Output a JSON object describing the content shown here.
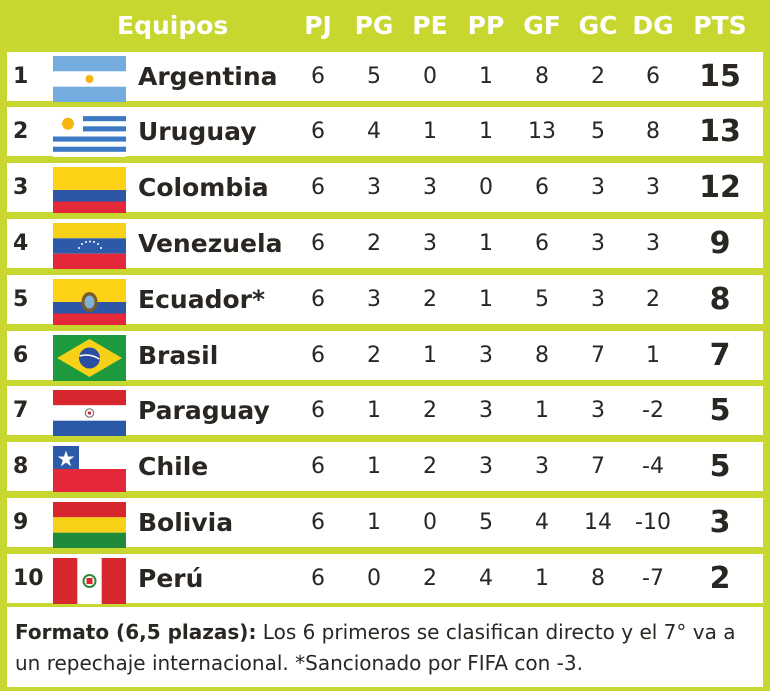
{
  "header": {
    "team": "Equipos",
    "cols": [
      "PJ",
      "PG",
      "PE",
      "PP",
      "GF",
      "GC",
      "DG",
      "PTS"
    ]
  },
  "rows": [
    {
      "pos": "1",
      "team": "Argentina",
      "flag": "argentina-flag",
      "pj": "6",
      "pg": "5",
      "pe": "0",
      "pp": "1",
      "gf": "8",
      "gc": "2",
      "dg": "6",
      "pts": "15"
    },
    {
      "pos": "2",
      "team": "Uruguay",
      "flag": "uruguay-flag",
      "pj": "6",
      "pg": "4",
      "pe": "1",
      "pp": "1",
      "gf": "13",
      "gc": "5",
      "dg": "8",
      "pts": "13"
    },
    {
      "pos": "3",
      "team": "Colombia",
      "flag": "colombia-flag",
      "pj": "6",
      "pg": "3",
      "pe": "3",
      "pp": "0",
      "gf": "6",
      "gc": "3",
      "dg": "3",
      "pts": "12"
    },
    {
      "pos": "4",
      "team": "Venezuela",
      "flag": "venezuela-flag",
      "pj": "6",
      "pg": "2",
      "pe": "3",
      "pp": "1",
      "gf": "6",
      "gc": "3",
      "dg": "3",
      "pts": "9"
    },
    {
      "pos": "5",
      "team": "Ecuador*",
      "flag": "ecuador-flag",
      "pj": "6",
      "pg": "3",
      "pe": "2",
      "pp": "1",
      "gf": "5",
      "gc": "3",
      "dg": "2",
      "pts": "8"
    },
    {
      "pos": "6",
      "team": "Brasil",
      "flag": "brasil-flag",
      "pj": "6",
      "pg": "2",
      "pe": "1",
      "pp": "3",
      "gf": "8",
      "gc": "7",
      "dg": "1",
      "pts": "7"
    },
    {
      "pos": "7",
      "team": "Paraguay",
      "flag": "paraguay-flag",
      "pj": "6",
      "pg": "1",
      "pe": "2",
      "pp": "3",
      "gf": "1",
      "gc": "3",
      "dg": "-2",
      "pts": "5"
    },
    {
      "pos": "8",
      "team": "Chile",
      "flag": "chile-flag",
      "pj": "6",
      "pg": "1",
      "pe": "2",
      "pp": "3",
      "gf": "3",
      "gc": "7",
      "dg": "-4",
      "pts": "5"
    },
    {
      "pos": "9",
      "team": "Bolivia",
      "flag": "bolivia-flag",
      "pj": "6",
      "pg": "1",
      "pe": "0",
      "pp": "5",
      "gf": "4",
      "gc": "14",
      "dg": "-10",
      "pts": "3"
    },
    {
      "pos": "10",
      "team": "Perú",
      "flag": "peru-flag",
      "pj": "6",
      "pg": "0",
      "pe": "2",
      "pp": "4",
      "gf": "1",
      "gc": "8",
      "dg": "-7",
      "pts": "2"
    }
  ],
  "footer": {
    "bold": "Formato (6,5 plazas):",
    "text": " Los 6 primeros se clasifican directo y el 7° va a un repechaje internacional. *Sancionado por FIFA con -3."
  },
  "colors": {
    "background": "#c8d72f",
    "row": "#ffffff",
    "text": "#2a2622"
  }
}
